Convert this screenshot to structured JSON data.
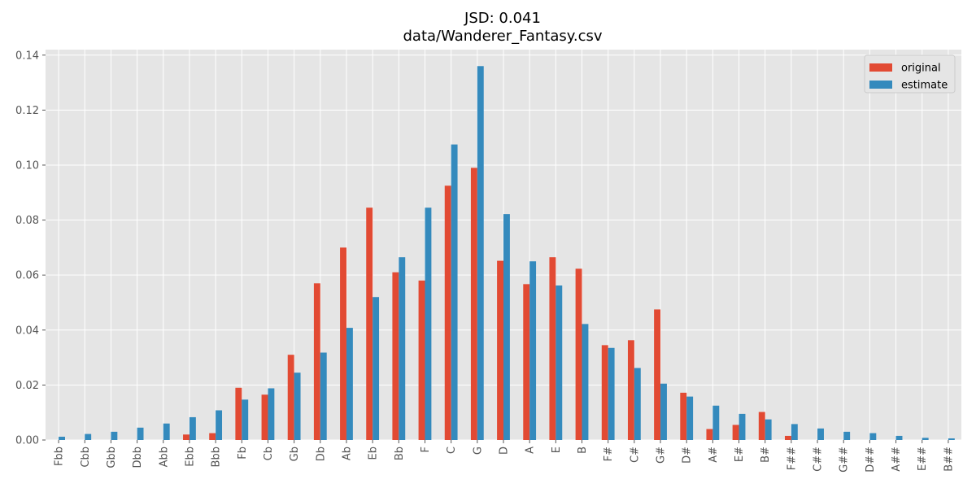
{
  "chart_data": {
    "type": "bar",
    "title": "JSD: 0.041",
    "subtitle": "data/Wanderer_Fantasy.csv",
    "xlabel": "",
    "ylabel": "",
    "ylim": [
      0,
      0.142
    ],
    "yticks": [
      "0.00",
      "0.02",
      "0.04",
      "0.06",
      "0.08",
      "0.10",
      "0.12",
      "0.14"
    ],
    "grid": true,
    "legend_position": "top-right",
    "categories": [
      "Fbb",
      "Cbb",
      "Gbb",
      "Dbb",
      "Abb",
      "Ebb",
      "Bbb",
      "Fb",
      "Cb",
      "Gb",
      "Db",
      "Ab",
      "Eb",
      "Bb",
      "F",
      "C",
      "G",
      "D",
      "A",
      "E",
      "B",
      "F#",
      "C#",
      "G#",
      "D#",
      "A#",
      "E#",
      "B#",
      "F##",
      "C##",
      "G##",
      "D##",
      "A##",
      "E##",
      "B##"
    ],
    "series": [
      {
        "name": "original",
        "color": "#E24A33",
        "values": [
          0,
          0,
          0,
          0,
          0,
          0.002,
          0.0025,
          0.019,
          0.0165,
          0.031,
          0.057,
          0.07,
          0.0845,
          0.061,
          0.058,
          0.0925,
          0.099,
          0.0652,
          0.0567,
          0.0665,
          0.0623,
          0.0345,
          0.0363,
          0.0475,
          0.0172,
          0.004,
          0.0055,
          0.0102,
          0.0015,
          0,
          0,
          0,
          0,
          0,
          0
        ]
      },
      {
        "name": "estimate",
        "color": "#348ABD",
        "values": [
          0.0012,
          0.0022,
          0.003,
          0.0045,
          0.006,
          0.0083,
          0.0108,
          0.0147,
          0.0188,
          0.0245,
          0.0318,
          0.0408,
          0.052,
          0.0665,
          0.0845,
          0.1075,
          0.136,
          0.0822,
          0.065,
          0.0562,
          0.0422,
          0.0335,
          0.0262,
          0.0205,
          0.0158,
          0.0125,
          0.0095,
          0.0075,
          0.0058,
          0.0042,
          0.003,
          0.0025,
          0.0015,
          0.0008,
          0.0006
        ]
      }
    ]
  }
}
